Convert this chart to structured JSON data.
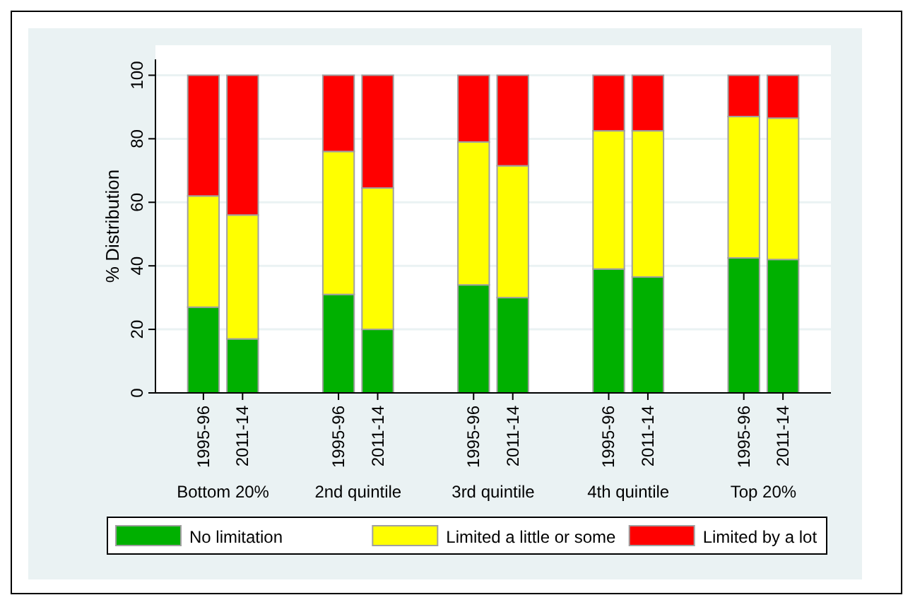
{
  "chart_data": {
    "type": "bar",
    "stacked": true,
    "ylabel": "% Distribution",
    "categories": [
      "1995-96",
      "2011-14",
      "1995-96",
      "2011-14",
      "1995-96",
      "2011-14",
      "1995-96",
      "2011-14",
      "1995-96",
      "2011-14"
    ],
    "series": [
      {
        "name": "No limitation",
        "color": "#00b000",
        "values": [
          27,
          17,
          31,
          20,
          34,
          30,
          39,
          36.5,
          42.5,
          42
        ]
      },
      {
        "name": "Limited a little or some",
        "color": "#ffff00",
        "values": [
          35,
          39,
          45,
          44.5,
          45,
          41.5,
          43.5,
          46,
          44.5,
          44.5
        ]
      },
      {
        "name": "Limited by a lot",
        "color": "#ff0000",
        "values": [
          38,
          44,
          24,
          35.5,
          21,
          28.5,
          17.5,
          17.5,
          13,
          13.5
        ]
      }
    ],
    "annotations": [
      "Bottom 20%",
      "2nd quintile",
      "3rd quintile",
      "4th quintile",
      "Top 20%"
    ],
    "ylim": [
      0,
      105
    ],
    "yticks": [
      0,
      20,
      40,
      60,
      80,
      100
    ],
    "grid": "y",
    "legend": "bottom"
  }
}
